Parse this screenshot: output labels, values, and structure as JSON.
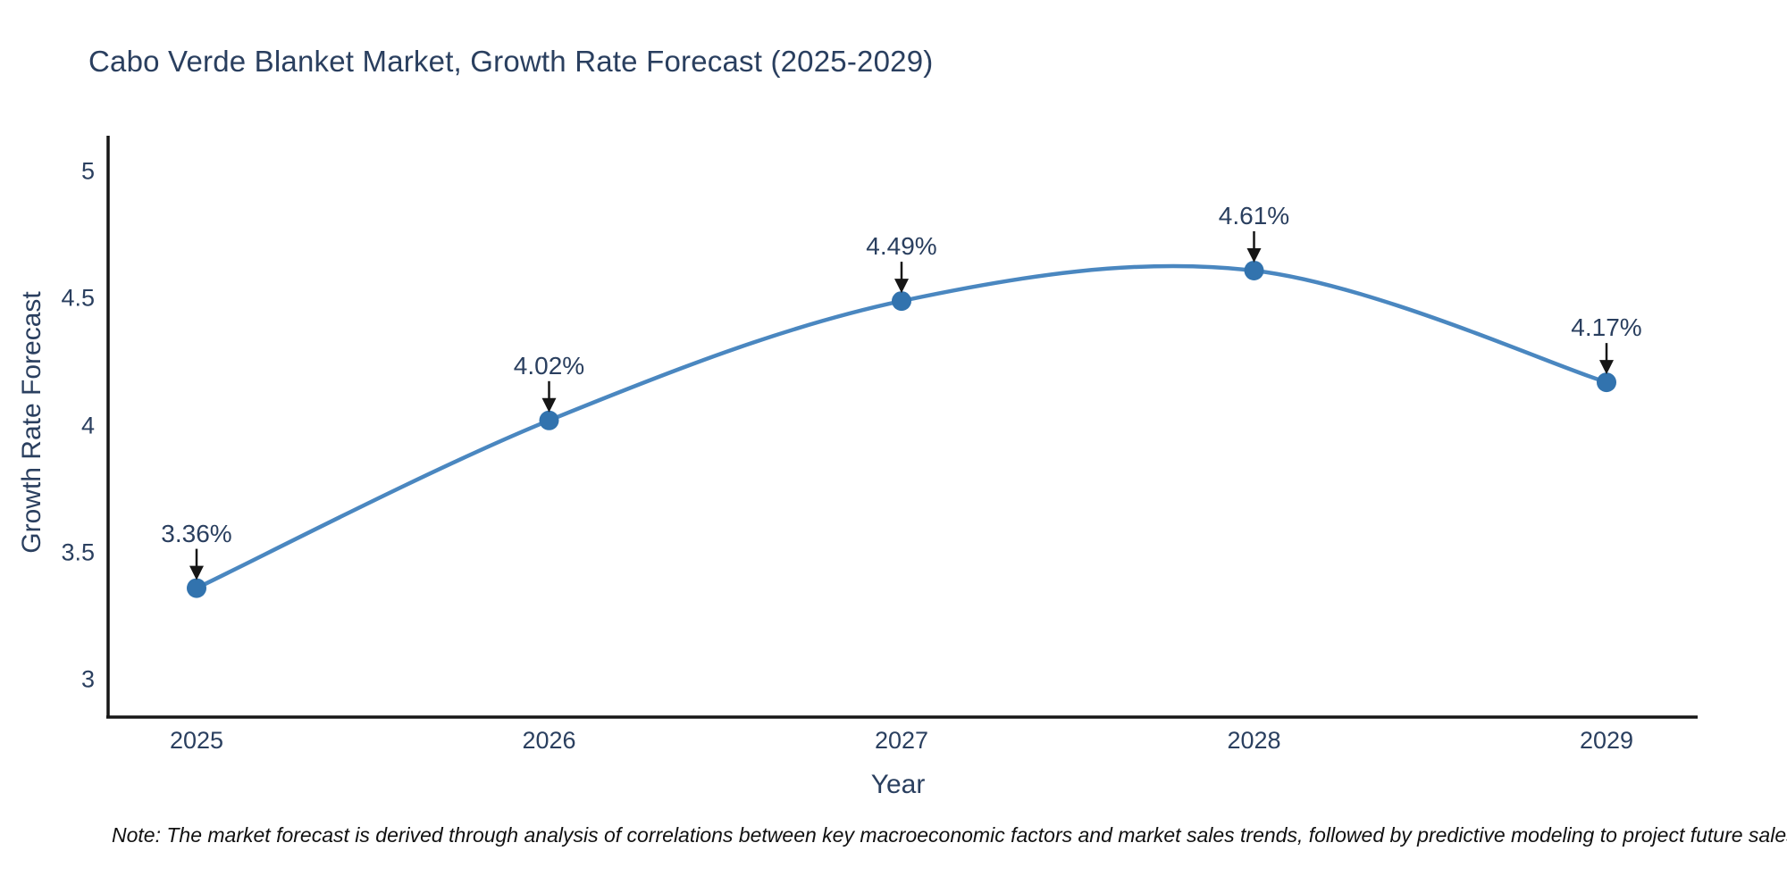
{
  "title": "Cabo Verde Blanket Market, Growth Rate Forecast (2025-2029)",
  "x_axis": {
    "title": "Year"
  },
  "y_axis": {
    "title": "Growth Rate Forecast"
  },
  "note": "Note: The market forecast is derived through analysis of correlations between key macroeconomic factors and market sales trends, followed by predictive modeling to project future sales",
  "colors": {
    "line": "#4a87c0",
    "marker": "#3273ae",
    "axis": "#161616",
    "arrow": "#161616",
    "text": "#2a3f5f",
    "note_text": "#111111",
    "background": "#ffffff"
  },
  "chart_data": {
    "type": "line",
    "title": "Cabo Verde Blanket Market, Growth Rate Forecast (2025-2029)",
    "x": [
      2025,
      2026,
      2027,
      2028,
      2029
    ],
    "x_tick_labels": [
      "2025",
      "2026",
      "2027",
      "2028",
      "2029"
    ],
    "series": [
      {
        "name": "Growth Rate Forecast",
        "values": [
          3.36,
          4.02,
          4.49,
          4.61,
          4.17
        ]
      }
    ],
    "point_labels": [
      "3.36%",
      "4.02%",
      "4.49%",
      "4.61%",
      "4.17%"
    ],
    "xlabel": "Year",
    "ylabel": "Growth Rate Forecast",
    "ylim": [
      2.85,
      5.13
    ],
    "yticks": [
      3,
      3.5,
      4,
      4.5,
      5
    ],
    "ytick_labels": [
      "3",
      "3.5",
      "4",
      "4.5",
      "5"
    ],
    "line_shape": "spline",
    "grid": false,
    "legend_position": "none",
    "annotations_arrow": "down"
  }
}
